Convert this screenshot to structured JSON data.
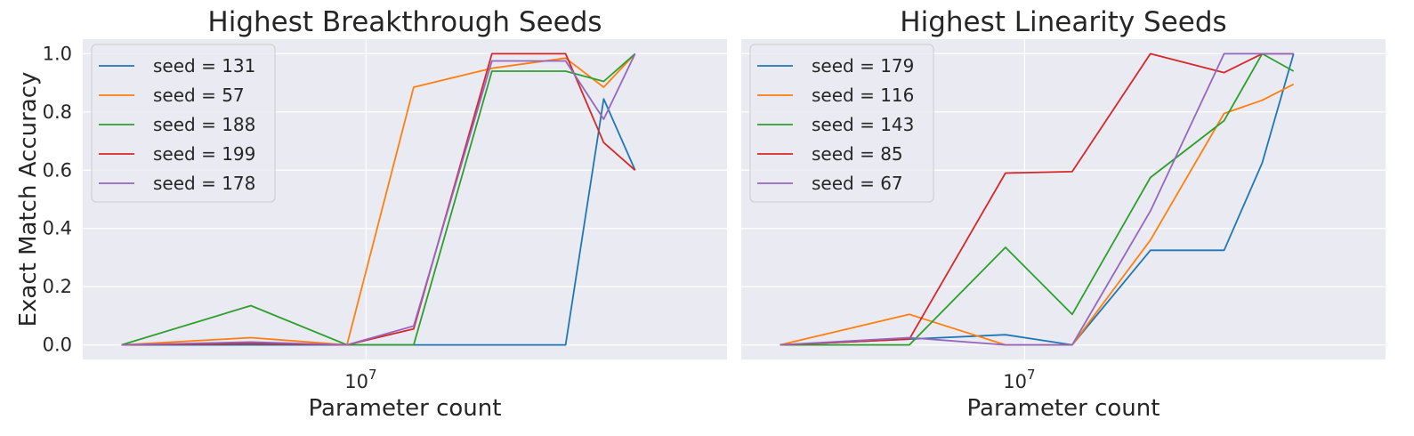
{
  "chart_data": [
    {
      "type": "line",
      "title": "Highest Breakthrough Seeds",
      "xlabel": "Parameter count",
      "ylabel": "Exact Match Accuracy",
      "xscale": "log",
      "xlim": [
        2100000,
        73000000
      ],
      "ylim": [
        -0.05,
        1.05
      ],
      "xticks": [
        {
          "value": 10000000,
          "base": "10",
          "exp": "7"
        }
      ],
      "yticks": [
        "0.0",
        "0.2",
        "0.4",
        "0.6",
        "0.8",
        "1.0"
      ],
      "grid": true,
      "legend_position": "top-left",
      "x": [
        2600000,
        5300000,
        9000000,
        13000000,
        20000000,
        30000000,
        37000000,
        44000000
      ],
      "series": [
        {
          "name": "seed = 131",
          "color": "#1f77b4",
          "values": [
            0.0,
            0.0,
            0.0,
            0.0,
            0.0,
            0.0,
            0.845,
            0.6
          ]
        },
        {
          "name": "seed = 57",
          "color": "#ff7f0e",
          "values": [
            0.0,
            0.025,
            0.0,
            0.885,
            0.95,
            0.985,
            0.885,
            1.0
          ]
        },
        {
          "name": "seed = 188",
          "color": "#2ca02c",
          "values": [
            0.0,
            0.135,
            0.0,
            0.0,
            0.94,
            0.94,
            0.905,
            1.0
          ]
        },
        {
          "name": "seed = 199",
          "color": "#d62728",
          "values": [
            0.0,
            0.005,
            0.0,
            0.055,
            1.0,
            1.0,
            0.695,
            0.6
          ]
        },
        {
          "name": "seed = 178",
          "color": "#9467bd",
          "values": [
            0.0,
            0.01,
            0.0,
            0.065,
            0.975,
            0.975,
            0.775,
            1.0
          ]
        }
      ]
    },
    {
      "type": "line",
      "title": "Highest Linearity Seeds",
      "xlabel": "Parameter count",
      "ylabel": "",
      "xscale": "log",
      "xlim": [
        2100000,
        73000000
      ],
      "ylim": [
        -0.05,
        1.05
      ],
      "xticks": [
        {
          "value": 10000000,
          "base": "10",
          "exp": "7"
        }
      ],
      "yticks": [],
      "grid": true,
      "legend_position": "top-left",
      "x": [
        2600000,
        5300000,
        9000000,
        13000000,
        20000000,
        30000000,
        37000000,
        44000000
      ],
      "series": [
        {
          "name": "seed = 179",
          "color": "#1f77b4",
          "values": [
            0.0,
            0.02,
            0.035,
            0.0,
            0.325,
            0.325,
            0.625,
            1.0
          ]
        },
        {
          "name": "seed = 116",
          "color": "#ff7f0e",
          "values": [
            0.0,
            0.105,
            0.0,
            0.0,
            0.36,
            0.795,
            0.84,
            0.895
          ]
        },
        {
          "name": "seed = 143",
          "color": "#2ca02c",
          "values": [
            0.0,
            0.0,
            0.335,
            0.105,
            0.575,
            0.77,
            1.0,
            0.94
          ]
        },
        {
          "name": "seed = 85",
          "color": "#d62728",
          "values": [
            0.0,
            0.02,
            0.59,
            0.595,
            1.0,
            0.935,
            1.0,
            1.0
          ]
        },
        {
          "name": "seed = 67",
          "color": "#9467bd",
          "values": [
            0.0,
            0.025,
            0.0,
            0.0,
            0.46,
            1.0,
            1.0,
            1.0
          ]
        }
      ]
    }
  ]
}
